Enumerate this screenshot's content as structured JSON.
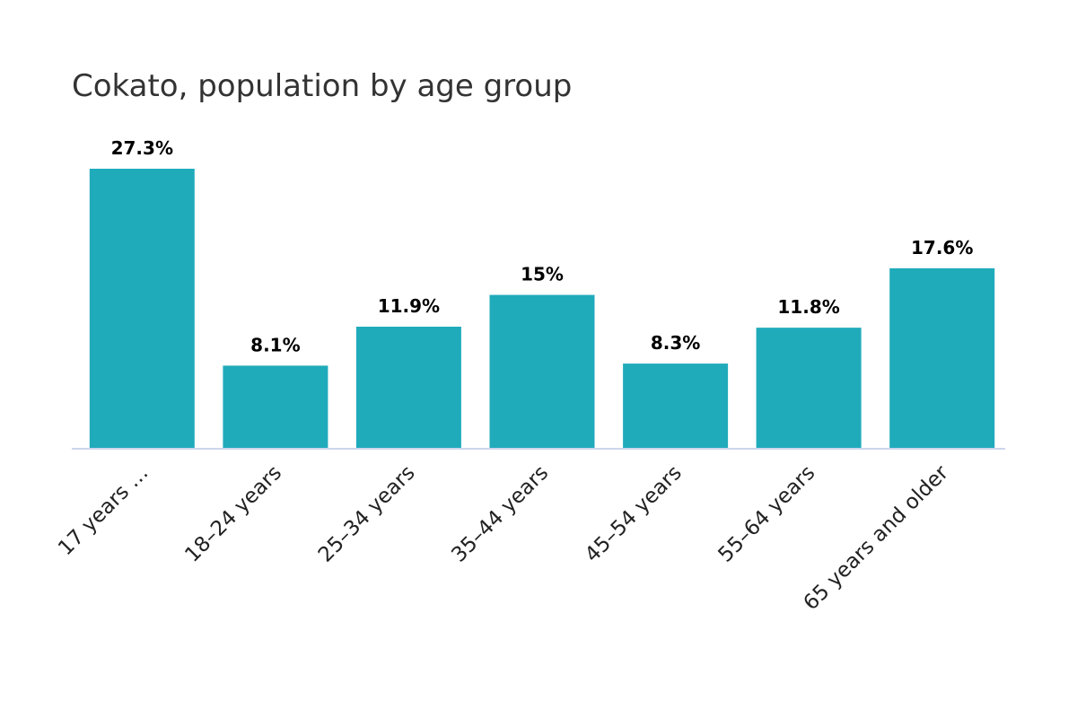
{
  "chart_data": {
    "type": "bar",
    "title": "Cokato, population by age group",
    "xlabel": "",
    "ylabel": "",
    "categories": [
      "17 years …",
      "18–24 years",
      "25–34 years",
      "35–44 years",
      "45–54 years",
      "55–64 years",
      "65 years and older"
    ],
    "values": [
      27.3,
      8.1,
      11.9,
      15,
      8.3,
      11.8,
      17.6
    ],
    "data_labels": [
      "27.3%",
      "8.1%",
      "11.9%",
      "15%",
      "8.3%",
      "11.8%",
      "17.6%"
    ],
    "unit": "%",
    "ylim": [
      0,
      27.3
    ],
    "grid": false,
    "legend": "none",
    "bar_color": "#20abbb",
    "axis_color": "#ccd6eb"
  }
}
